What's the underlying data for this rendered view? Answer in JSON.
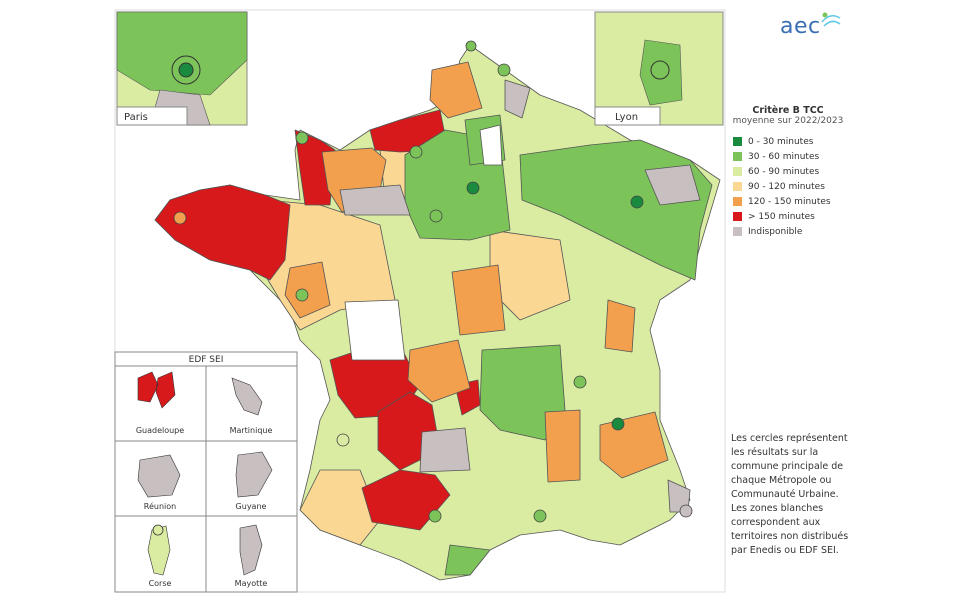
{
  "brand": "aec",
  "insets": {
    "paris": "Paris",
    "lyon": "Lyon"
  },
  "sei_panel": {
    "title": "EDF SEI",
    "territories": [
      "Guadeloupe",
      "Martinique",
      "Réunion",
      "Guyane",
      "Corse",
      "Mayotte"
    ]
  },
  "legend": {
    "title": "Critère B TCC",
    "subtitle": "moyenne sur 2022/2023",
    "items": [
      {
        "label": "0 - 30 minutes",
        "color": "#1a8a3e"
      },
      {
        "label": "30 - 60 minutes",
        "color": "#7cc45a"
      },
      {
        "label": "60 - 90 minutes",
        "color": "#d9eca2"
      },
      {
        "label": "90 - 120 minutes",
        "color": "#fad894"
      },
      {
        "label": "120 - 150 minutes",
        "color": "#f2a04e"
      },
      {
        "label": "> 150 minutes",
        "color": "#d7191c"
      },
      {
        "label": "Indisponible",
        "color": "#c8bfc0"
      }
    ]
  },
  "note": "Les cercles représentent les résultats sur la commune principale de chaque Métropole ou Communauté Urbaine. Les zones blanches correspondent aux territoires non distribués par Enedis ou EDF SEI."
}
